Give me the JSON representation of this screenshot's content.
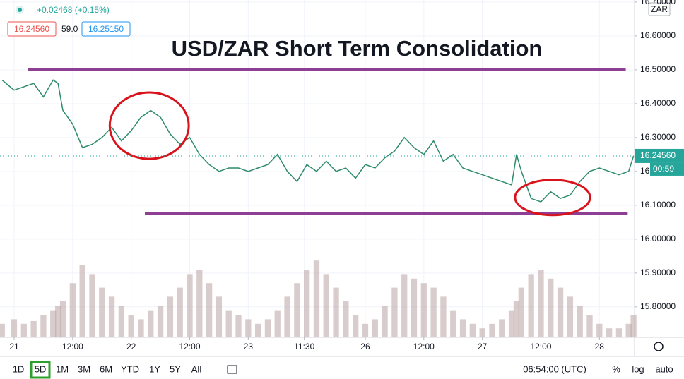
{
  "chart_data": {
    "type": "line",
    "title": "USD/ZAR Short Term Consolidation",
    "currency": "ZAR",
    "x": [
      -2.5,
      0,
      2,
      4,
      6,
      8,
      9,
      10,
      12,
      14,
      16,
      18,
      20,
      22,
      24,
      26,
      28,
      30,
      32,
      34,
      36,
      38,
      40,
      42,
      44,
      46,
      48,
      50,
      52,
      54,
      56,
      58,
      60,
      62,
      64,
      66,
      68,
      70,
      72,
      74,
      76,
      78,
      80,
      82,
      84,
      86,
      88,
      90,
      92,
      94,
      96,
      98,
      100,
      102,
      103,
      104,
      106,
      108,
      110,
      112,
      114,
      116,
      118,
      120,
      122,
      124,
      126,
      127
    ],
    "values": [
      16.47,
      16.44,
      16.45,
      16.46,
      16.42,
      16.47,
      16.46,
      16.38,
      16.34,
      16.27,
      16.28,
      16.3,
      16.33,
      16.29,
      16.32,
      16.36,
      16.38,
      16.36,
      16.31,
      16.28,
      16.3,
      16.25,
      16.22,
      16.2,
      16.21,
      16.21,
      16.2,
      16.21,
      16.22,
      16.25,
      16.2,
      16.17,
      16.22,
      16.2,
      16.23,
      16.2,
      16.21,
      16.18,
      16.22,
      16.21,
      16.24,
      16.26,
      16.3,
      16.27,
      16.25,
      16.29,
      16.23,
      16.25,
      16.21,
      16.2,
      16.19,
      16.18,
      16.17,
      16.16,
      16.25,
      16.2,
      16.12,
      16.11,
      16.14,
      16.12,
      16.13,
      16.17,
      16.2,
      16.21,
      16.2,
      16.19,
      16.2,
      16.2456
    ],
    "color": "#2e8b6a",
    "volume": {
      "color": "#b9a3a3",
      "values": [
        15,
        20,
        15,
        18,
        25,
        30,
        35,
        40,
        60,
        80,
        70,
        55,
        45,
        35,
        25,
        20,
        30,
        35,
        45,
        55,
        70,
        75,
        60,
        45,
        30,
        25,
        20,
        15,
        20,
        30,
        45,
        60,
        75,
        85,
        70,
        55,
        40,
        25,
        15,
        20,
        35,
        55,
        70,
        65,
        60,
        55,
        45,
        30,
        20,
        15,
        10,
        15,
        20,
        30,
        40,
        55,
        70,
        75,
        65,
        55,
        45,
        35,
        25,
        15,
        10,
        10,
        15,
        25
      ]
    },
    "xlim": [
      -2.9,
      127.2
    ],
    "ylim": [
      15.71,
      16.706
    ],
    "xticks": [
      {
        "value": 0,
        "label": "21"
      },
      {
        "value": 12,
        "label": "12:00"
      },
      {
        "value": 24,
        "label": "22"
      },
      {
        "value": 36,
        "label": "12:00"
      },
      {
        "value": 48,
        "label": "23"
      },
      {
        "value": 59.5,
        "label": "11:30"
      },
      {
        "value": 72,
        "label": "26"
      },
      {
        "value": 84,
        "label": "12:00"
      },
      {
        "value": 96,
        "label": "27"
      },
      {
        "value": 108,
        "label": "12:00"
      },
      {
        "value": 120,
        "label": "28"
      }
    ],
    "yticks": [
      {
        "value": 15.8,
        "label": "15.80000"
      },
      {
        "value": 15.9,
        "label": "15.90000"
      },
      {
        "value": 16.0,
        "label": "16.00000"
      },
      {
        "value": 16.1,
        "label": "16.10000"
      },
      {
        "value": 16.2,
        "label": "16.20000"
      },
      {
        "value": 16.3,
        "label": "16.30000"
      },
      {
        "value": 16.4,
        "label": "16.40000"
      },
      {
        "value": 16.5,
        "label": "16.50000"
      },
      {
        "value": 16.6,
        "label": "16.60000"
      },
      {
        "value": 16.7,
        "label": "16.70000"
      }
    ],
    "grid": true,
    "levels": [
      {
        "value": 16.5,
        "from": 2.9,
        "to": 125.4,
        "color": "#8e3f94"
      },
      {
        "value": 16.075,
        "from": 26.8,
        "to": 125.8,
        "color": "#8e3f94"
      }
    ],
    "highlights": [
      {
        "cx": 27.7,
        "cy": 16.335,
        "rx": 8.1,
        "ry": 0.098,
        "color": "#d9131b"
      },
      {
        "cx": 110.4,
        "cy": 16.123,
        "rx": 7.7,
        "ry": 0.052,
        "color": "#d9131b"
      }
    ],
    "last_price": {
      "value": 16.2456,
      "label": "16.24560",
      "color": "#26a69a"
    },
    "countdown": "00:59"
  },
  "legend": {
    "change": "+0.02468 (+0.15%)",
    "bid": "16.24560",
    "spread": "59.0",
    "ask": "16.25150"
  },
  "toolbar": {
    "ranges": [
      "1D",
      "5D",
      "1M",
      "3M",
      "6M",
      "YTD",
      "1Y",
      "5Y",
      "All"
    ],
    "active": 1,
    "time": "06:54:00 (UTC)",
    "options": [
      "%",
      "log",
      "auto"
    ]
  }
}
